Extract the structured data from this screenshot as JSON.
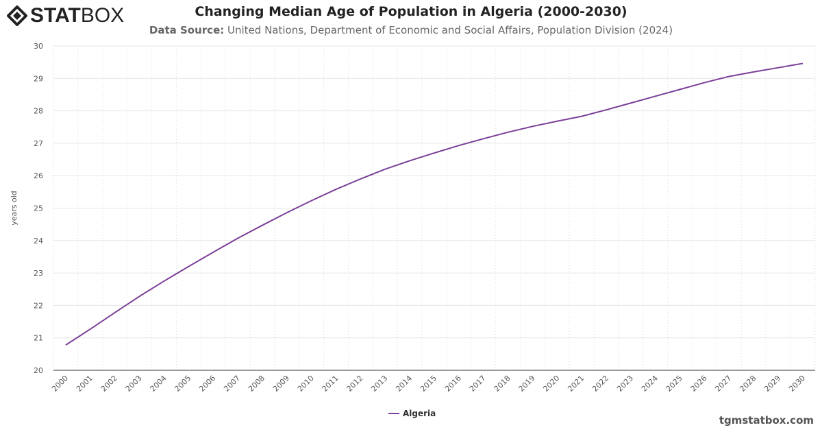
{
  "logo": {
    "text_bold": "STAT",
    "text_light": "BOX"
  },
  "title": "Changing Median Age of Population in Algeria (2000-2030)",
  "subtitle": {
    "label": "Data Source:",
    "text": " United Nations, Department of Economic and Social Affairs, Population Division (2024)"
  },
  "footer": "tgmstatbox.com",
  "chart_data": {
    "type": "line",
    "title": "Changing Median Age of Population in Algeria (2000-2030)",
    "xlabel": "",
    "ylabel": "years old",
    "ylim": [
      20,
      30
    ],
    "yticks": [
      "20",
      "21",
      "22",
      "23",
      "24",
      "25",
      "26",
      "27",
      "28",
      "29",
      "30"
    ],
    "grid": true,
    "legend_placement": "bottom",
    "x": [
      "2000",
      "2001",
      "2002",
      "2003",
      "2004",
      "2005",
      "2006",
      "2007",
      "2008",
      "2009",
      "2010",
      "2011",
      "2012",
      "2013",
      "2014",
      "2015",
      "2016",
      "2017",
      "2018",
      "2019",
      "2020",
      "2021",
      "2022",
      "2023",
      "2024",
      "2025",
      "2026",
      "2027",
      "2028",
      "2029",
      "2030"
    ],
    "series": [
      {
        "name": "Algeria",
        "color": "#7b3f98",
        "values": [
          20.78,
          21.27,
          21.78,
          22.28,
          22.75,
          23.2,
          23.64,
          24.07,
          24.47,
          24.86,
          25.23,
          25.58,
          25.9,
          26.2,
          26.46,
          26.7,
          26.93,
          27.14,
          27.34,
          27.52,
          27.68,
          27.83,
          28.03,
          28.24,
          28.45,
          28.66,
          28.87,
          29.06,
          29.2,
          29.33,
          29.46
        ]
      }
    ]
  }
}
